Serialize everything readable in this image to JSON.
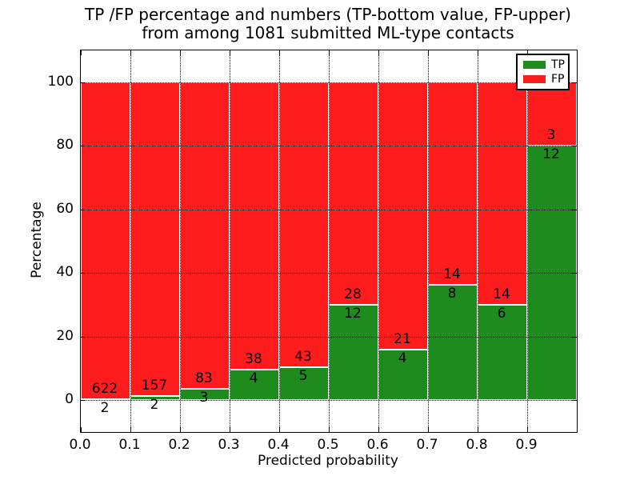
{
  "figure": {
    "title_line1": "TP /FP percentage and numbers (TP-bottom value, FP-upper)",
    "title_line2": "from among 1081 submitted ML-type contacts",
    "xlabel": "Predicted probability",
    "ylabel": "Percentage"
  },
  "legend": {
    "items": [
      {
        "label": "TP",
        "color": "#1e8b1e"
      },
      {
        "label": "FP",
        "color": "#ff1c1c"
      }
    ]
  },
  "colors": {
    "tp": "#1e8b1e",
    "fp": "#ff1c1c",
    "bar_edge": "#ffffff",
    "grid": "#000000",
    "text": "#000000",
    "background": "#ffffff"
  },
  "chart_data": {
    "type": "bar",
    "stacked": true,
    "title": "TP /FP percentage and numbers (TP-bottom value, FP-upper) from among 1081 submitted ML-type contacts",
    "xlabel": "Predicted probability",
    "ylabel": "Percentage",
    "total_contacts": 1081,
    "bin_width": 0.1,
    "bin_starts": [
      0.0,
      0.1,
      0.2,
      0.3,
      0.4,
      0.5,
      0.6,
      0.7,
      0.8,
      0.9
    ],
    "series": [
      {
        "name": "TP",
        "counts": [
          2,
          2,
          3,
          4,
          5,
          12,
          4,
          8,
          6,
          12
        ],
        "color": "#1e8b1e"
      },
      {
        "name": "FP",
        "counts": [
          622,
          157,
          83,
          38,
          43,
          28,
          21,
          14,
          14,
          3
        ],
        "color": "#ff1c1c"
      }
    ],
    "tp_percent": [
      0.32,
      1.26,
      3.49,
      9.52,
      10.42,
      30.0,
      16.0,
      36.36,
      30.0,
      80.0
    ],
    "x_tick_labels": [
      "0.0",
      "0.1",
      "0.2",
      "0.3",
      "0.4",
      "0.5",
      "0.6",
      "0.7",
      "0.8",
      "0.9"
    ],
    "y_ticks": [
      0,
      20,
      40,
      60,
      80,
      100
    ],
    "xlim": [
      0.0,
      1.0
    ],
    "ylim": [
      -10,
      110
    ],
    "grid": "dotted",
    "legend_position": "upper right"
  }
}
